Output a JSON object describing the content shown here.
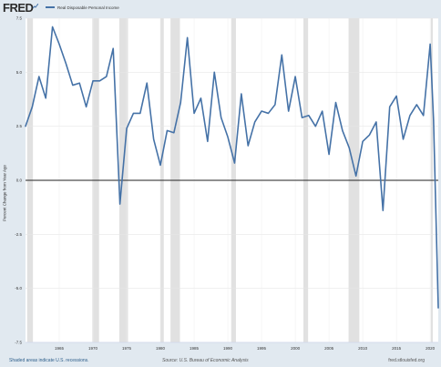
{
  "header": {
    "logo_text": "FRED",
    "legend_label": "Real Disposable Personal Income",
    "legend_color": "#4572a7"
  },
  "chart_data": {
    "type": "line",
    "title": "",
    "ylabel": "Percent Change from Year Ago",
    "xlabel": "",
    "ylim": [
      -7.5,
      7.5
    ],
    "yticks": [
      -7.5,
      -5.0,
      -2.5,
      0.0,
      2.5,
      5.0,
      7.5
    ],
    "ytick_labels": [
      "-7.5",
      "-5.0",
      "-2.5",
      "0.0",
      "2.5",
      "5.0",
      "7.5"
    ],
    "xlim": [
      1960,
      2021.2
    ],
    "xticks": [
      1965,
      1970,
      1975,
      1980,
      1985,
      1990,
      1995,
      2000,
      2005,
      2010,
      2015,
      2020
    ],
    "xtick_labels": [
      "1965",
      "1970",
      "1975",
      "1980",
      "1985",
      "1990",
      "1995",
      "2000",
      "2005",
      "2010",
      "2015",
      "2020"
    ],
    "zero_line": true,
    "recessions": [
      [
        1960.25,
        1961.1
      ],
      [
        1969.9,
        1970.9
      ],
      [
        1973.9,
        1975.2
      ],
      [
        1980.0,
        1980.5
      ],
      [
        1981.5,
        1982.9
      ],
      [
        1990.5,
        1991.2
      ],
      [
        2001.2,
        2001.9
      ],
      [
        2007.9,
        2009.5
      ],
      [
        2020.1,
        2020.4
      ]
    ],
    "series": [
      {
        "color": "#4572a7",
        "x": [
          1960,
          1961,
          1962,
          1963,
          1964,
          1965,
          1966,
          1967,
          1968,
          1969,
          1970,
          1971,
          1972,
          1973,
          1974,
          1975,
          1976,
          1977,
          1978,
          1979,
          1980,
          1981,
          1982,
          1983,
          1984,
          1985,
          1986,
          1987,
          1988,
          1989,
          1990,
          1991,
          1992,
          1993,
          1994,
          1995,
          1996,
          1997,
          1998,
          1999,
          2000,
          2001,
          2002,
          2003,
          2004,
          2005,
          2006,
          2007,
          2008,
          2009,
          2010,
          2011,
          2012,
          2013,
          2014,
          2015,
          2016,
          2017,
          2018,
          2019,
          2020,
          2020.5,
          2021.2
        ],
        "values": [
          2.5,
          3.4,
          4.8,
          3.8,
          7.1,
          6.3,
          5.4,
          4.4,
          4.5,
          3.4,
          4.6,
          4.6,
          4.8,
          6.1,
          -1.1,
          2.4,
          3.1,
          3.1,
          4.5,
          1.9,
          0.7,
          2.3,
          2.2,
          3.6,
          6.6,
          3.1,
          3.8,
          1.8,
          5.0,
          2.9,
          2.0,
          0.8,
          4.0,
          1.6,
          2.7,
          3.2,
          3.1,
          3.5,
          5.8,
          3.2,
          4.8,
          2.9,
          3.0,
          2.5,
          3.2,
          1.2,
          3.6,
          2.3,
          1.5,
          0.2,
          1.8,
          2.1,
          2.7,
          -1.4,
          3.4,
          3.9,
          1.9,
          3.0,
          3.5,
          3.0,
          6.3,
          2.8,
          -5.9
        ]
      }
    ]
  },
  "footer": {
    "left_text": "Shaded areas indicate U.S. recessions.",
    "center_text": "Source: U.S. Bureau of Economic Analysis",
    "right_text": "fred.stlouisfed.org"
  }
}
